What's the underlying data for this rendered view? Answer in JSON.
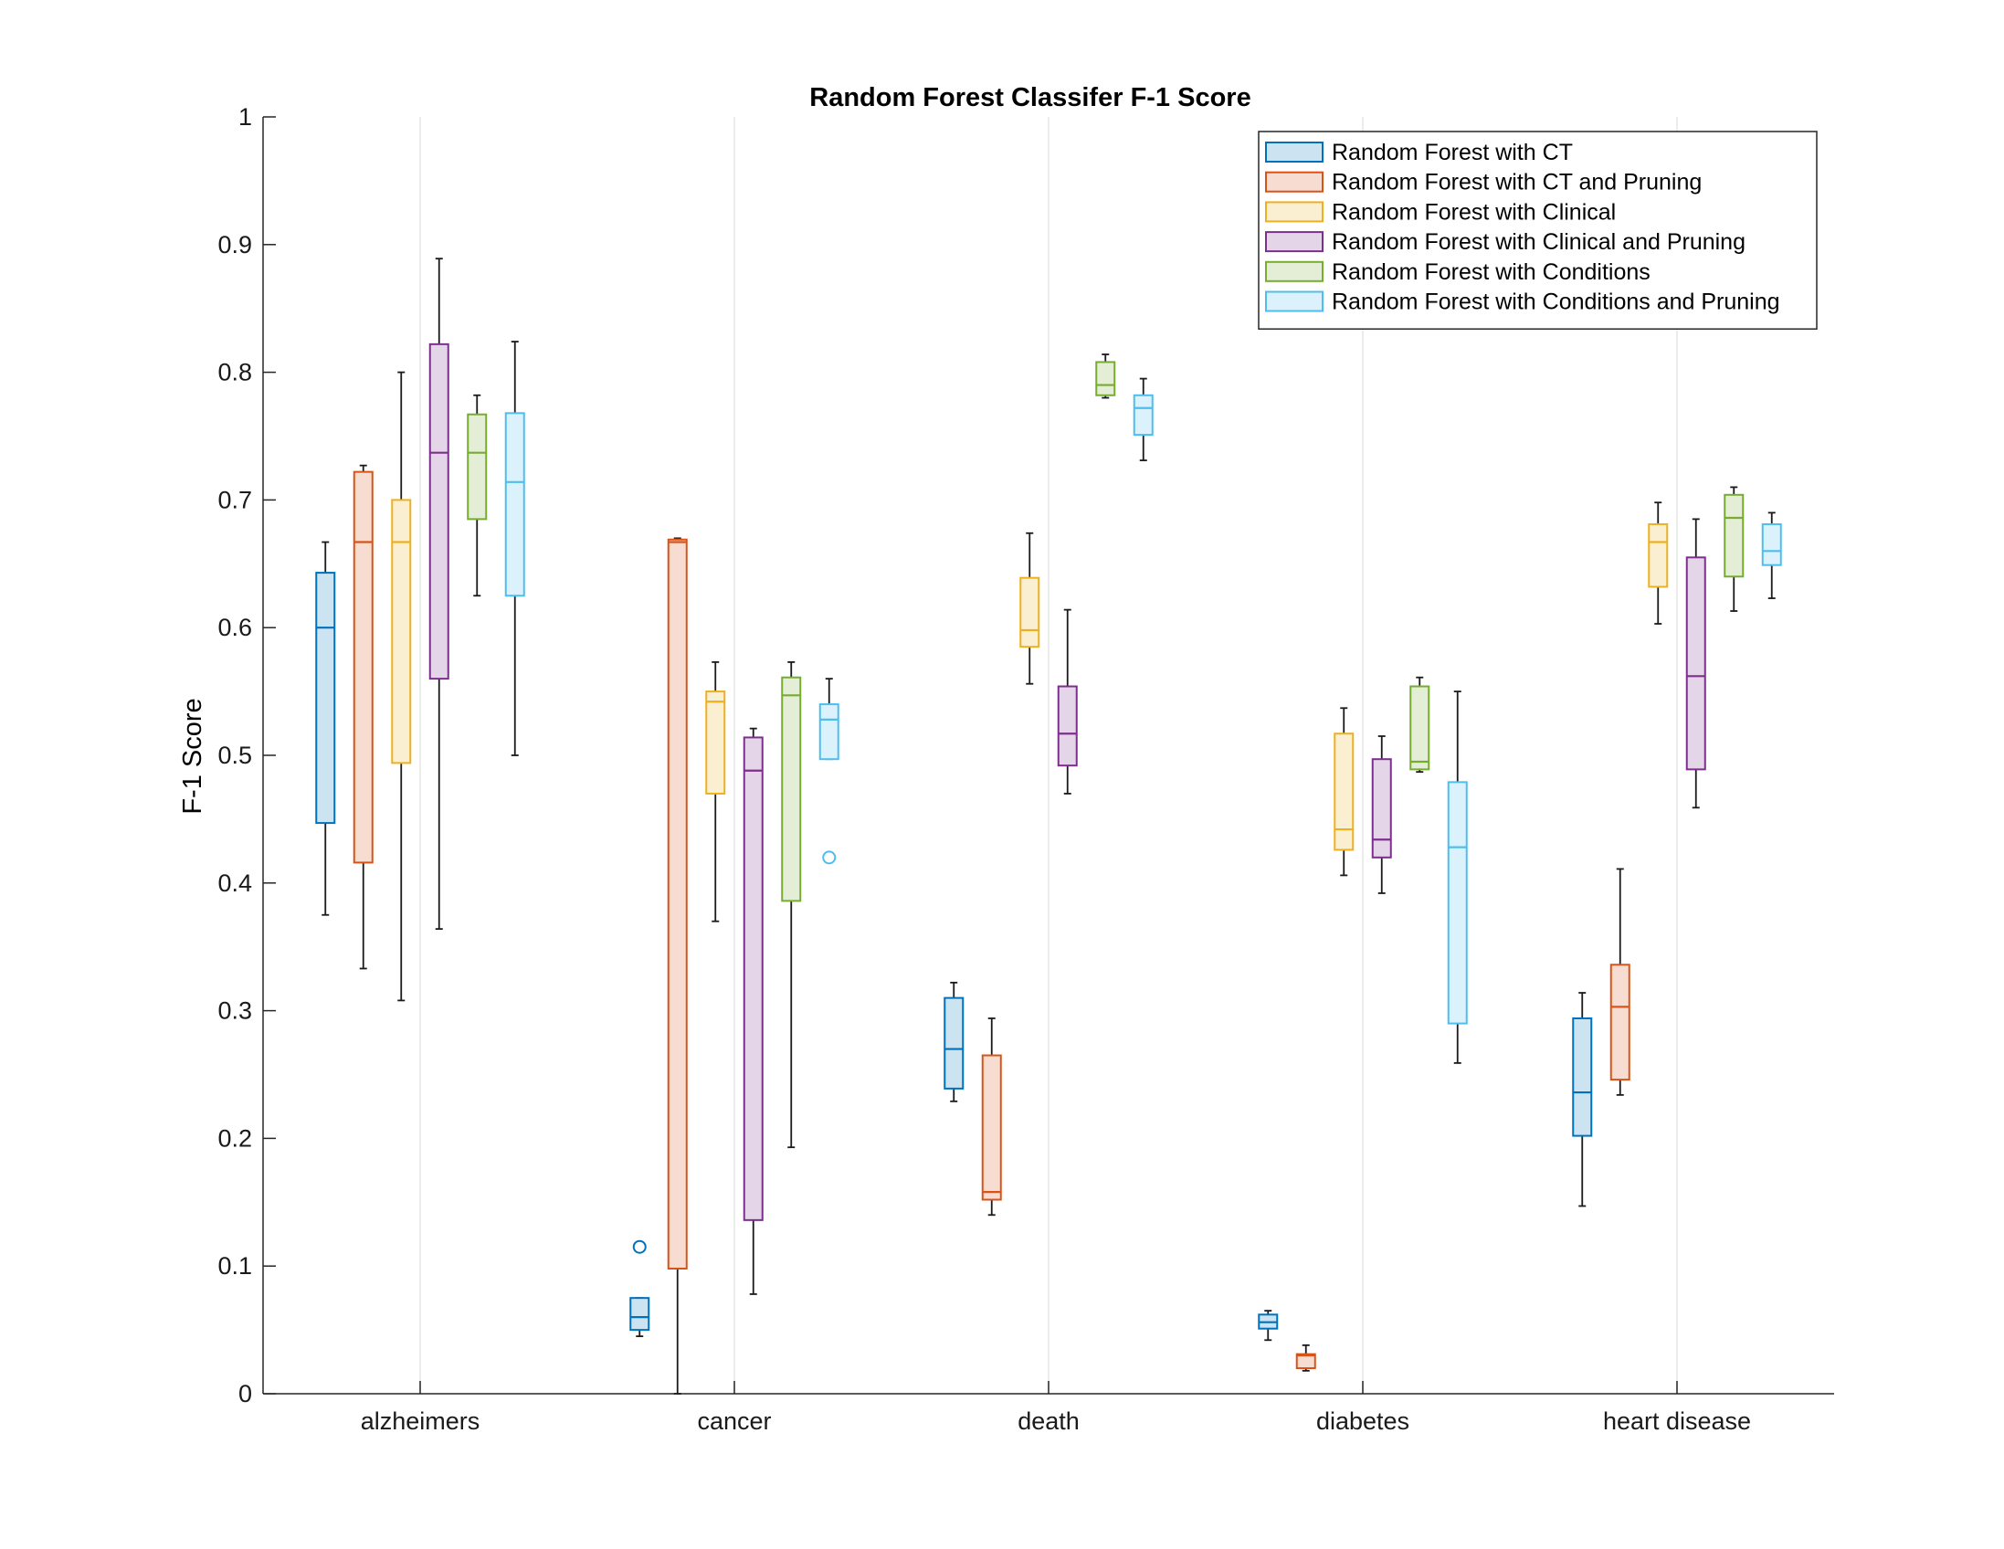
{
  "chart_data": {
    "type": "box",
    "title": "Random Forest Classifer F-1 Score",
    "xlabel": "",
    "ylabel": "F-1 Score",
    "ylim": [
      0,
      1
    ],
    "yticks": [
      0,
      0.1,
      0.2,
      0.3,
      0.4,
      0.5,
      0.6,
      0.7,
      0.8,
      0.9,
      1
    ],
    "ytick_labels": [
      "0",
      "0.1",
      "0.2",
      "0.3",
      "0.4",
      "0.5",
      "0.6",
      "0.7",
      "0.8",
      "0.9",
      "1"
    ],
    "categories": [
      "alzheimers",
      "cancer",
      "death",
      "diabetes",
      "heart disease"
    ],
    "grid": "vertical at categories",
    "legend_position": "top-right",
    "series": [
      {
        "name": "Random Forest with CT",
        "color": "#0072BD",
        "fill": "#CCE3F2",
        "boxes": [
          {
            "min": 0.375,
            "q1": 0.447,
            "median": 0.6,
            "q3": 0.643,
            "max": 0.667,
            "outliers": []
          },
          {
            "min": 0.045,
            "q1": 0.05,
            "median": 0.06,
            "q3": 0.075,
            "max": 0.075,
            "outliers": [
              0.115
            ]
          },
          {
            "min": 0.229,
            "q1": 0.239,
            "median": 0.27,
            "q3": 0.31,
            "max": 0.322,
            "outliers": []
          },
          {
            "min": 0.042,
            "q1": 0.051,
            "median": 0.056,
            "q3": 0.062,
            "max": 0.065,
            "outliers": []
          },
          {
            "min": 0.147,
            "q1": 0.202,
            "median": 0.236,
            "q3": 0.294,
            "max": 0.314,
            "outliers": []
          }
        ]
      },
      {
        "name": "Random Forest with CT and Pruning",
        "color": "#D95319",
        "fill": "#F7DDD1",
        "boxes": [
          {
            "min": 0.333,
            "q1": 0.416,
            "median": 0.667,
            "q3": 0.722,
            "max": 0.727,
            "outliers": []
          },
          {
            "min": 0.0,
            "q1": 0.098,
            "median": 0.667,
            "q3": 0.669,
            "max": 0.67,
            "outliers": []
          },
          {
            "min": 0.14,
            "q1": 0.152,
            "median": 0.158,
            "q3": 0.265,
            "max": 0.294,
            "outliers": []
          },
          {
            "min": 0.018,
            "q1": 0.02,
            "median": 0.03,
            "q3": 0.031,
            "max": 0.038,
            "outliers": []
          },
          {
            "min": 0.234,
            "q1": 0.246,
            "median": 0.303,
            "q3": 0.336,
            "max": 0.411,
            "outliers": []
          }
        ]
      },
      {
        "name": "Random Forest with Clinical",
        "color": "#EDB120",
        "fill": "#FBEFD2",
        "boxes": [
          {
            "min": 0.308,
            "q1": 0.494,
            "median": 0.667,
            "q3": 0.7,
            "max": 0.8,
            "outliers": []
          },
          {
            "min": 0.37,
            "q1": 0.47,
            "median": 0.542,
            "q3": 0.55,
            "max": 0.573,
            "outliers": []
          },
          {
            "min": 0.556,
            "q1": 0.585,
            "median": 0.598,
            "q3": 0.639,
            "max": 0.674,
            "outliers": []
          },
          {
            "min": 0.406,
            "q1": 0.426,
            "median": 0.442,
            "q3": 0.517,
            "max": 0.537,
            "outliers": []
          },
          {
            "min": 0.603,
            "q1": 0.632,
            "median": 0.667,
            "q3": 0.681,
            "max": 0.698,
            "outliers": []
          }
        ]
      },
      {
        "name": "Random Forest with Clinical and Pruning",
        "color": "#7E2F8E",
        "fill": "#E5D5E8",
        "boxes": [
          {
            "min": 0.364,
            "q1": 0.56,
            "median": 0.737,
            "q3": 0.822,
            "max": 0.889,
            "outliers": []
          },
          {
            "min": 0.078,
            "q1": 0.136,
            "median": 0.488,
            "q3": 0.514,
            "max": 0.521,
            "outliers": []
          },
          {
            "min": 0.47,
            "q1": 0.492,
            "median": 0.517,
            "q3": 0.554,
            "max": 0.614,
            "outliers": []
          },
          {
            "min": 0.392,
            "q1": 0.42,
            "median": 0.434,
            "q3": 0.497,
            "max": 0.515,
            "outliers": []
          },
          {
            "min": 0.459,
            "q1": 0.489,
            "median": 0.562,
            "q3": 0.655,
            "max": 0.685,
            "outliers": []
          }
        ]
      },
      {
        "name": "Random Forest with Conditions",
        "color": "#77AC30",
        "fill": "#E4EED6",
        "boxes": [
          {
            "min": 0.625,
            "q1": 0.685,
            "median": 0.737,
            "q3": 0.767,
            "max": 0.782,
            "outliers": []
          },
          {
            "min": 0.193,
            "q1": 0.386,
            "median": 0.547,
            "q3": 0.561,
            "max": 0.573,
            "outliers": []
          },
          {
            "min": 0.78,
            "q1": 0.782,
            "median": 0.79,
            "q3": 0.808,
            "max": 0.814,
            "outliers": []
          },
          {
            "min": 0.487,
            "q1": 0.489,
            "median": 0.495,
            "q3": 0.554,
            "max": 0.561,
            "outliers": []
          },
          {
            "min": 0.613,
            "q1": 0.64,
            "median": 0.686,
            "q3": 0.704,
            "max": 0.71,
            "outliers": []
          }
        ]
      },
      {
        "name": "Random Forest with Conditions and Pruning",
        "color": "#4DBEEE",
        "fill": "#DBF2FC",
        "boxes": [
          {
            "min": 0.5,
            "q1": 0.625,
            "median": 0.714,
            "q3": 0.768,
            "max": 0.824,
            "outliers": []
          },
          {
            "min": 0.497,
            "q1": 0.497,
            "median": 0.528,
            "q3": 0.54,
            "max": 0.56,
            "outliers": [
              0.42
            ]
          },
          {
            "min": 0.731,
            "q1": 0.751,
            "median": 0.772,
            "q3": 0.782,
            "max": 0.795,
            "outliers": []
          },
          {
            "min": 0.259,
            "q1": 0.29,
            "median": 0.428,
            "q3": 0.479,
            "max": 0.55,
            "outliers": []
          },
          {
            "min": 0.623,
            "q1": 0.649,
            "median": 0.66,
            "q3": 0.681,
            "max": 0.69,
            "outliers": []
          }
        ]
      }
    ]
  }
}
